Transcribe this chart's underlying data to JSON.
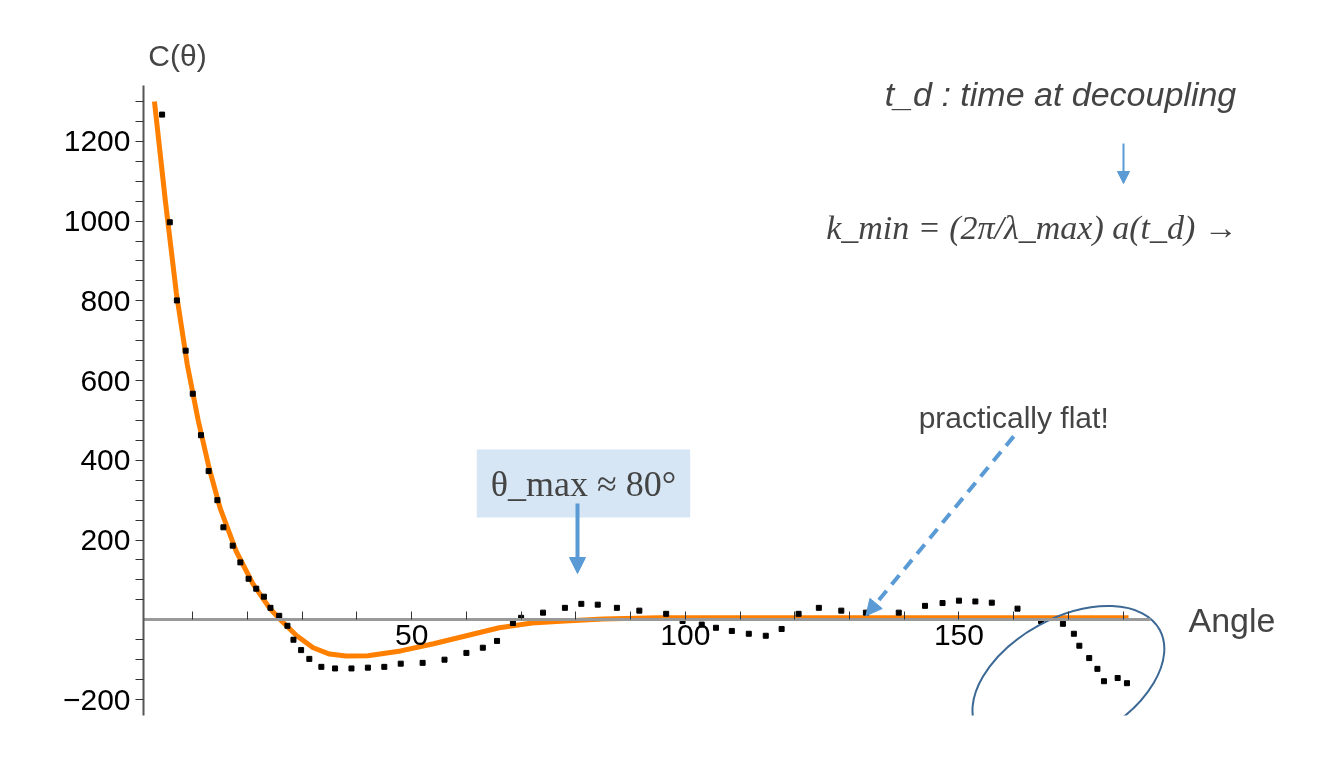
{
  "chart_data": {
    "type": "scatter",
    "xlabel": "Angle",
    "ylabel": "C(θ)",
    "xlim": [
      1,
      185
    ],
    "ylim": [
      -240,
      1340
    ],
    "xticks": [
      {
        "value": 10,
        "label": null
      },
      {
        "value": 20,
        "label": null
      },
      {
        "value": 30,
        "label": null
      },
      {
        "value": 40,
        "label": null
      },
      50,
      {
        "value": 60,
        "label": null
      },
      {
        "value": 70,
        "label": null
      },
      {
        "value": 80,
        "label": null
      },
      {
        "value": 90,
        "label": null
      },
      100,
      {
        "value": 110,
        "label": null
      },
      {
        "value": 120,
        "label": null
      },
      {
        "value": 130,
        "label": null
      },
      {
        "value": 140,
        "label": null
      },
      150,
      {
        "value": 160,
        "label": null
      },
      {
        "value": 170,
        "label": null
      },
      {
        "value": 180,
        "label": null
      }
    ],
    "yticks": [
      {
        "value": -200,
        "label": "−200"
      },
      {
        "value": -150,
        "label": null
      },
      {
        "value": -100,
        "label": null
      },
      {
        "value": -50,
        "label": null
      },
      {
        "value": 50,
        "label": null
      },
      {
        "value": 100,
        "label": null
      },
      {
        "value": 150,
        "label": null
      },
      200,
      {
        "value": 250,
        "label": null
      },
      {
        "value": 300,
        "label": null
      },
      {
        "value": 350,
        "label": null
      },
      400,
      {
        "value": 450,
        "label": null
      },
      {
        "value": 500,
        "label": null
      },
      {
        "value": 550,
        "label": null
      },
      600,
      {
        "value": 650,
        "label": null
      },
      {
        "value": 700,
        "label": null
      },
      {
        "value": 750,
        "label": null
      },
      800,
      {
        "value": 850,
        "label": null
      },
      {
        "value": 900,
        "label": null
      },
      {
        "value": 950,
        "label": null
      },
      1000,
      {
        "value": 1050,
        "label": null
      },
      {
        "value": 1100,
        "label": null
      },
      {
        "value": 1150,
        "label": null
      },
      1200,
      {
        "value": 1250,
        "label": null
      },
      {
        "value": 1300,
        "label": null
      }
    ],
    "grid": false,
    "series": [
      {
        "color": "#000000",
        "marker": "square",
        "x": [
          4.4,
          5.8,
          7.1,
          8.7,
          10,
          11.5,
          12.9,
          14.5,
          15.6,
          17.3,
          18.7,
          20.2,
          21.6,
          23,
          24.2,
          25.8,
          27.3,
          28.4,
          29.8,
          31.3,
          33.5,
          36,
          39,
          42,
          45,
          48,
          52,
          56,
          60,
          63,
          65.6,
          68.5,
          70,
          74,
          78,
          81,
          84,
          87.5,
          91.6,
          96.5,
          99.5,
          103,
          105.6,
          108.5,
          111.6,
          114.7,
          117.6,
          120.7,
          124.4,
          128.5,
          133,
          139,
          143.8,
          147,
          150,
          153,
          156,
          160.7,
          165,
          169,
          171,
          172,
          173.8,
          175.3,
          176.5,
          179,
          180.7
        ],
        "values": [
          1267,
          997,
          801,
          675,
          567,
          463,
          373,
          300,
          232,
          186,
          144,
          103,
          78,
          58,
          30,
          10,
          -15,
          -50,
          -76,
          -98,
          -118,
          -122,
          -122,
          -120,
          -118,
          -110,
          -108,
          -100,
          -83,
          -70,
          -53,
          -8,
          5,
          18,
          30,
          40,
          38,
          30,
          23,
          15,
          -3,
          -12,
          -20,
          -28,
          -35,
          -40,
          -23,
          15,
          30,
          23,
          18,
          18,
          35,
          42,
          48,
          46,
          43,
          28,
          -3,
          -10,
          -35,
          -65,
          -96,
          -123,
          -154,
          -146,
          -159
        ]
      },
      {
        "type": "line",
        "color": "#ff8000",
        "line_style": "solid",
        "x": [
          3,
          5,
          7,
          9,
          11,
          13,
          15,
          18,
          21,
          24,
          26,
          29,
          32,
          35,
          38,
          42,
          48,
          54,
          60,
          66,
          72,
          78,
          85,
          95,
          120,
          150,
          181
        ],
        "values": [
          1300,
          1050,
          820,
          640,
          500,
          380,
          280,
          170,
          90,
          30,
          0,
          -40,
          -70,
          -86,
          -91,
          -90,
          -78,
          -60,
          -40,
          -20,
          -8,
          -3,
          2,
          5,
          5,
          5,
          5
        ]
      }
    ],
    "annotations": [
      "θ_max ≈ 80°",
      {
        "text": "practically flat!",
        "x": 133,
        "y": 10
      },
      "t_d : time at decoupling",
      "k_min = (2π/λ_max) a(t_d)   →"
    ]
  }
}
